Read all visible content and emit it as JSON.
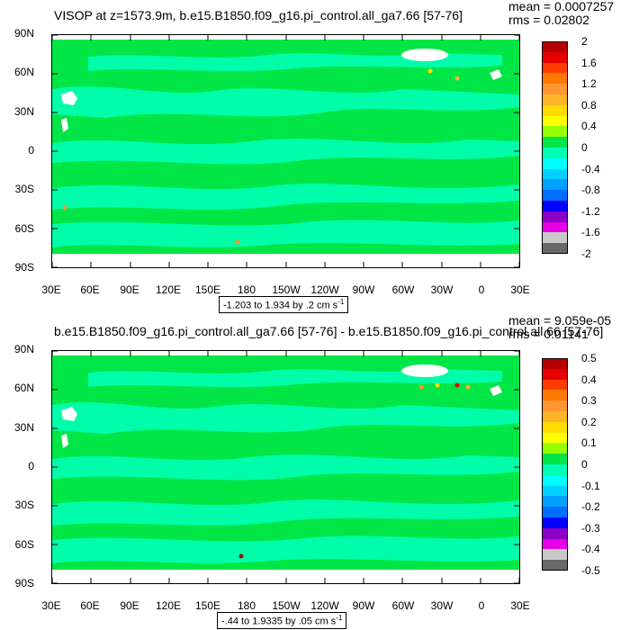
{
  "chart_data": [
    {
      "type": "heatmap",
      "title": "VISOP at z=1573.9m, b.e15.B1850.f09_g16.pi_control.all_ga7.66 [57-76]",
      "stats": {
        "mean": "mean = 0.0007257",
        "rms": "rms = 0.02802"
      },
      "xticks": [
        "30E",
        "60E",
        "90E",
        "120E",
        "150E",
        "180",
        "150W",
        "120W",
        "90W",
        "60W",
        "30W",
        "0",
        "30E"
      ],
      "yticks": [
        "90N",
        "60N",
        "30N",
        "0",
        "30S",
        "60S",
        "90S"
      ],
      "colorbar": {
        "labels": [
          "2",
          "1.6",
          "1.2",
          "0.8",
          "0.4",
          "0",
          "-0.4",
          "-0.8",
          "-1.2",
          "-1.6",
          "-2"
        ],
        "colors": [
          "#b40000",
          "#e60000",
          "#ff3c00",
          "#ff7800",
          "#ff9632",
          "#ffb428",
          "#ffdc00",
          "#ffff00",
          "#96ff00",
          "#00e646",
          "#00ffb4",
          "#00ffff",
          "#00d2ff",
          "#00a0ff",
          "#006eff",
          "#0000ff",
          "#8c00c8",
          "#e600e6",
          "#c8c8c8",
          "#696969"
        ]
      },
      "range_text": "-1.203 to 1.934 by .2 cm s",
      "range_unit_exp": "-1"
    },
    {
      "type": "heatmap",
      "title": "b.e15.B1850.f09_g16.pi_control.all_ga7.66 [57-76] - b.e15.B1850.f09_g16.pi_control.all.66 [57-76]",
      "stats": {
        "mean": "mean = 9.059e-05",
        "rms": "rms = 0.01141"
      },
      "xticks": [
        "30E",
        "60E",
        "90E",
        "120E",
        "150E",
        "180",
        "150W",
        "120W",
        "90W",
        "60W",
        "30W",
        "0",
        "30E"
      ],
      "yticks": [
        "90N",
        "60N",
        "30N",
        "0",
        "30S",
        "60S",
        "90S"
      ],
      "colorbar": {
        "labels": [
          "0.5",
          "0.4",
          "0.3",
          "0.2",
          "0.1",
          "0",
          "-0.1",
          "-0.2",
          "-0.3",
          "-0.4",
          "-0.5"
        ],
        "colors": [
          "#b40000",
          "#e60000",
          "#ff3c00",
          "#ff7800",
          "#ff9632",
          "#ffb428",
          "#ffdc00",
          "#ffff00",
          "#96ff00",
          "#00e646",
          "#00ffb4",
          "#00ffff",
          "#00d2ff",
          "#00a0ff",
          "#006eff",
          "#0000ff",
          "#8c00c8",
          "#e600e6",
          "#c8c8c8",
          "#696969"
        ]
      },
      "range_text": "-.44 to 1.9335 by .05 cm s",
      "range_unit_exp": "-1"
    }
  ]
}
